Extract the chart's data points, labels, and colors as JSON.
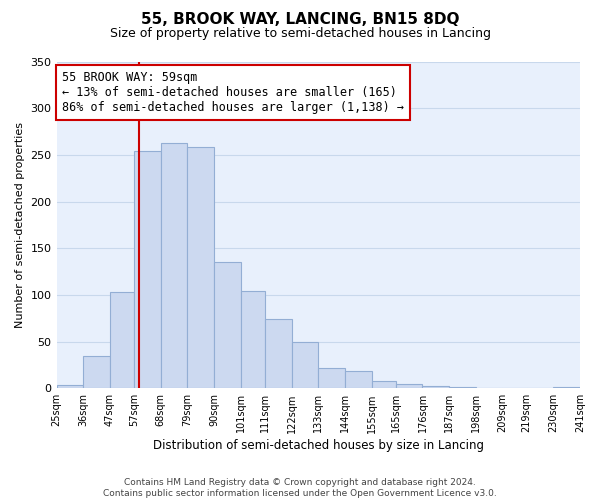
{
  "title": "55, BROOK WAY, LANCING, BN15 8DQ",
  "subtitle": "Size of property relative to semi-detached houses in Lancing",
  "xlabel": "Distribution of semi-detached houses by size in Lancing",
  "ylabel": "Number of semi-detached properties",
  "bar_edges": [
    25,
    36,
    47,
    57,
    68,
    79,
    90,
    101,
    111,
    122,
    133,
    144,
    155,
    165,
    176,
    187,
    198,
    209,
    219,
    230,
    241
  ],
  "bar_heights": [
    4,
    35,
    103,
    254,
    263,
    258,
    135,
    104,
    74,
    50,
    22,
    19,
    8,
    5,
    3,
    1,
    0,
    0,
    0,
    1
  ],
  "bar_color": "#ccd9f0",
  "bar_edge_color": "#93aed4",
  "vline_x": 59,
  "vline_color": "#cc0000",
  "ann_title": "55 BROOK WAY: 59sqm",
  "ann_line2": "← 13% of semi-detached houses are smaller (165)",
  "ann_line3": "86% of semi-detached houses are larger (1,138) →",
  "ylim": [
    0,
    350
  ],
  "yticks": [
    0,
    50,
    100,
    150,
    200,
    250,
    300,
    350
  ],
  "tick_labels": [
    "25sqm",
    "36sqm",
    "47sqm",
    "57sqm",
    "68sqm",
    "79sqm",
    "90sqm",
    "101sqm",
    "111sqm",
    "122sqm",
    "133sqm",
    "144sqm",
    "155sqm",
    "165sqm",
    "176sqm",
    "187sqm",
    "198sqm",
    "209sqm",
    "219sqm",
    "230sqm",
    "241sqm"
  ],
  "footer_text": "Contains HM Land Registry data © Crown copyright and database right 2024.\nContains public sector information licensed under the Open Government Licence v3.0.",
  "grid_color": "#c8d8ec",
  "bg_color": "#e8f0fc"
}
